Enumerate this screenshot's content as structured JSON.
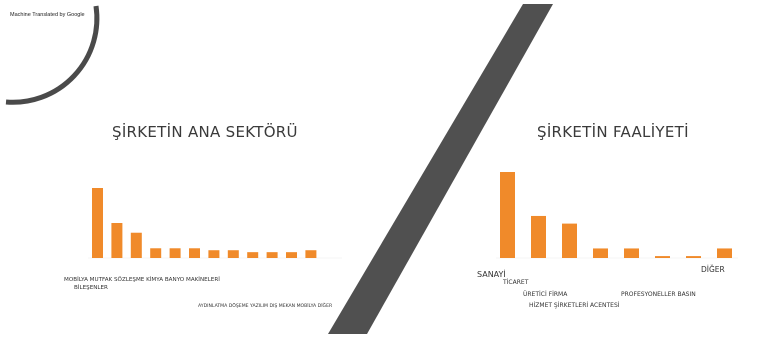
{
  "watermark": "Machine Translated by Google",
  "colors": {
    "bar": "#f08a2a",
    "slash": "#505050",
    "arc": "#4a4a4a"
  },
  "chart_data": [
    {
      "type": "bar",
      "title": "ŞİRKETİN ANA SEKTÖRÜ",
      "values": [
        36,
        18,
        13,
        5,
        5,
        5,
        4,
        4,
        3,
        3,
        3,
        4
      ],
      "labels": {
        "line1": "MOBİLYA MUTFAK SÖZLEŞME KİMYA BANYO MAKİNELERİ",
        "line2": "BİLEŞENLER",
        "line3": "AYDINLATMA DÖŞEME YAZILIM DIŞ MEKAN MOBİLYA DİĞER"
      }
    },
    {
      "type": "bar",
      "title": "ŞİRKETİN FAALİYETİ",
      "values": [
        45,
        22,
        18,
        5,
        5,
        1,
        1,
        5
      ],
      "labels": {
        "sanayi": "SANAYİ",
        "ticaret": "TİCARET",
        "uretici": "ÜRETİCİ FİRMA",
        "hizmet": "HİZMET ŞİRKETLERİ ACENTESİ",
        "profesyoneller": "PROFESYONELLER BASIN",
        "diger": "DİĞER"
      }
    }
  ]
}
